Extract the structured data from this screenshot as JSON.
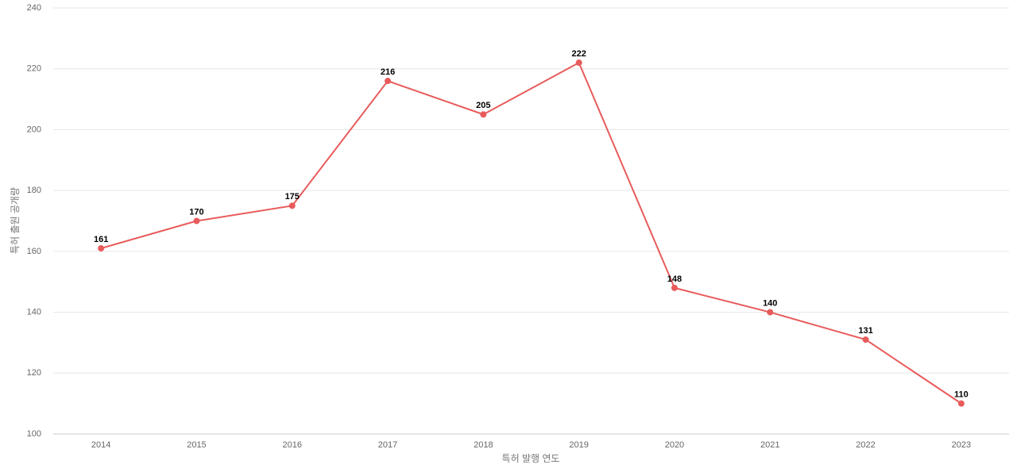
{
  "chart_data": {
    "type": "line",
    "x_label": "특허 발행 연도",
    "y_label": "특허 출원 공개량",
    "categories": [
      "2014",
      "2015",
      "2016",
      "2017",
      "2018",
      "2019",
      "2020",
      "2021",
      "2022",
      "2023"
    ],
    "values": [
      161,
      170,
      175,
      216,
      205,
      222,
      148,
      140,
      131,
      110
    ],
    "color": "#e85b5b",
    "ylim": [
      100,
      240
    ],
    "yticks": [
      100,
      120,
      140,
      160,
      180,
      200,
      220,
      240
    ],
    "grid": true,
    "data_labels": true
  }
}
